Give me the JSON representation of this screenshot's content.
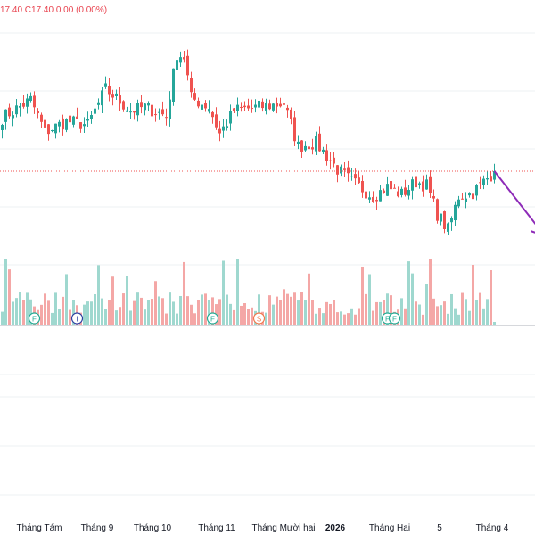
{
  "header": {
    "ohlc_text": "17.40  C17.40  0.00 (0.00%)"
  },
  "colors": {
    "up": "#26a69a",
    "down": "#ef5350",
    "up_volume": "#9fd8cf",
    "down_volume": "#f4a7a6",
    "last_price_line": "#ef5350",
    "arrow": "#8e2bb8",
    "grid": "#eef0f3",
    "axis_text": "#131722",
    "event_F": "#22ab94",
    "event_I": "#2b3fa0",
    "event_S": "#f2774b"
  },
  "chart_data": {
    "type": "candlestick",
    "title": "",
    "xlabel": "",
    "ylabel": "",
    "x_tick_labels": [
      "Tháng Tám",
      "Tháng 9",
      "Tháng 10",
      "Tháng 11",
      "Tháng Mười hai",
      "2026",
      "Tháng Hai",
      "5",
      "Tháng 4"
    ],
    "bold_tick_labels": [
      "2026"
    ],
    "ylim": [
      12,
      25
    ],
    "grid": true,
    "last_price": 17.4,
    "candle_count": 139,
    "close_waypoints": [
      {
        "index": 0,
        "close": 20.4
      },
      {
        "index": 8,
        "close": 21.4
      },
      {
        "index": 12,
        "close": 19.6
      },
      {
        "index": 18,
        "close": 20.2
      },
      {
        "index": 24,
        "close": 20.0
      },
      {
        "index": 29,
        "close": 22.0
      },
      {
        "index": 36,
        "close": 20.8
      },
      {
        "index": 40,
        "close": 21.0
      },
      {
        "index": 46,
        "close": 20.5
      },
      {
        "index": 49,
        "close": 24.0
      },
      {
        "index": 51,
        "close": 23.8
      },
      {
        "index": 53,
        "close": 21.5
      },
      {
        "index": 58,
        "close": 21.0
      },
      {
        "index": 61,
        "close": 19.5
      },
      {
        "index": 65,
        "close": 20.8
      },
      {
        "index": 72,
        "close": 21.0
      },
      {
        "index": 79,
        "close": 21.2
      },
      {
        "index": 83,
        "close": 18.8
      },
      {
        "index": 88,
        "close": 19.0
      },
      {
        "index": 94,
        "close": 17.5
      },
      {
        "index": 98,
        "close": 16.8
      },
      {
        "index": 104,
        "close": 16.0
      },
      {
        "index": 108,
        "close": 16.5
      },
      {
        "index": 112,
        "close": 16.1
      },
      {
        "index": 116,
        "close": 16.8
      },
      {
        "index": 119,
        "close": 16.6
      },
      {
        "index": 122,
        "close": 15.0
      },
      {
        "index": 125,
        "close": 14.1
      },
      {
        "index": 128,
        "close": 16.0
      },
      {
        "index": 132,
        "close": 16.2
      },
      {
        "index": 135,
        "close": 16.8
      },
      {
        "index": 138,
        "close": 17.4
      }
    ],
    "event_markers": [
      {
        "letter": "F",
        "index": 9
      },
      {
        "letter": "I",
        "index": 21
      },
      {
        "letter": "F",
        "index": 59
      },
      {
        "letter": "S",
        "index": 72
      },
      {
        "letter": "F",
        "index": 108
      },
      {
        "letter": "F",
        "index": 110
      }
    ],
    "projection": {
      "from_index": 138,
      "from_value": 17.4,
      "to_index": 150,
      "to_value": 13.8
    }
  }
}
